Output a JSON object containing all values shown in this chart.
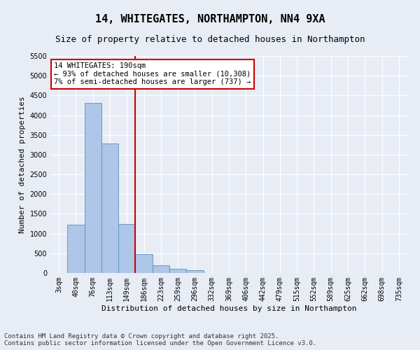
{
  "title": "14, WHITEGATES, NORTHAMPTON, NN4 9XA",
  "subtitle": "Size of property relative to detached houses in Northampton",
  "xlabel": "Distribution of detached houses by size in Northampton",
  "ylabel": "Number of detached properties",
  "categories": [
    "3sqm",
    "40sqm",
    "76sqm",
    "113sqm",
    "149sqm",
    "186sqm",
    "223sqm",
    "259sqm",
    "296sqm",
    "332sqm",
    "369sqm",
    "406sqm",
    "442sqm",
    "479sqm",
    "515sqm",
    "552sqm",
    "589sqm",
    "625sqm",
    "662sqm",
    "698sqm",
    "735sqm"
  ],
  "values": [
    0,
    1220,
    4320,
    3280,
    1250,
    480,
    200,
    110,
    70,
    0,
    0,
    0,
    0,
    0,
    0,
    0,
    0,
    0,
    0,
    0,
    0
  ],
  "bar_color": "#aec6e8",
  "bar_edge_color": "#5a8fc0",
  "highlight_line_index": 5,
  "highlight_line_color": "#cc0000",
  "annotation_text": "14 WHITEGATES: 190sqm\n← 93% of detached houses are smaller (10,308)\n7% of semi-detached houses are larger (737) →",
  "annotation_box_color": "#ffffff",
  "annotation_box_edge_color": "#cc0000",
  "ylim": [
    0,
    5500
  ],
  "yticks": [
    0,
    500,
    1000,
    1500,
    2000,
    2500,
    3000,
    3500,
    4000,
    4500,
    5000,
    5500
  ],
  "background_color": "#e8edf5",
  "footer_line1": "Contains HM Land Registry data © Crown copyright and database right 2025.",
  "footer_line2": "Contains public sector information licensed under the Open Government Licence v3.0.",
  "title_fontsize": 11,
  "subtitle_fontsize": 9,
  "axis_label_fontsize": 8,
  "tick_fontsize": 7,
  "annotation_fontsize": 7.5,
  "footer_fontsize": 6.5
}
